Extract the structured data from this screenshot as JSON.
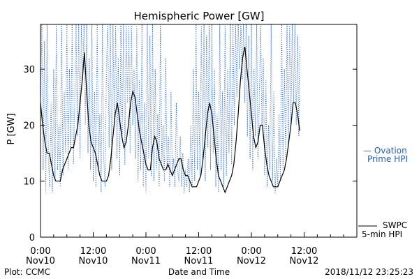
{
  "chart_data": {
    "type": "line",
    "title": "Hemispheric Power [GW]",
    "xlabel": "Date and Time",
    "ylabel": "P [GW]",
    "ylim": [
      0,
      38
    ],
    "y_ticks": [
      0,
      10,
      20,
      30
    ],
    "x_ticks": [
      {
        "t": 0,
        "time": "0:00",
        "day": "Nov10"
      },
      {
        "t": 12,
        "time": "12:00",
        "day": "Nov10"
      },
      {
        "t": 24,
        "time": "0:00",
        "day": "Nov11"
      },
      {
        "t": 36,
        "time": "12:00",
        "day": "Nov11"
      },
      {
        "t": 48,
        "time": "0:00",
        "day": "Nov12"
      },
      {
        "t": 60,
        "time": "12:00",
        "day": "Nov12"
      }
    ],
    "x_range_hours": [
      0,
      72
    ],
    "series": [
      {
        "name": "SWPC 5-min HPI",
        "color": "#000000",
        "style": "solid",
        "points": [
          [
            0,
            24
          ],
          [
            0.5,
            20
          ],
          [
            1,
            17
          ],
          [
            1.5,
            15
          ],
          [
            2,
            15
          ],
          [
            2.5,
            13
          ],
          [
            3,
            11
          ],
          [
            3.5,
            10
          ],
          [
            4,
            10
          ],
          [
            4.5,
            10
          ],
          [
            5,
            12
          ],
          [
            5.5,
            13
          ],
          [
            6,
            14
          ],
          [
            6.5,
            15
          ],
          [
            7,
            16
          ],
          [
            7.5,
            16
          ],
          [
            8,
            18
          ],
          [
            8.5,
            20
          ],
          [
            9,
            24
          ],
          [
            9.5,
            28
          ],
          [
            10,
            33
          ],
          [
            10.5,
            26
          ],
          [
            11,
            20
          ],
          [
            11.5,
            17
          ],
          [
            12,
            16
          ],
          [
            12.5,
            15
          ],
          [
            13,
            13
          ],
          [
            13.5,
            11
          ],
          [
            14,
            10
          ],
          [
            14.5,
            10
          ],
          [
            15,
            10
          ],
          [
            15.5,
            11
          ],
          [
            16,
            14
          ],
          [
            16.5,
            18
          ],
          [
            17,
            22
          ],
          [
            17.5,
            24
          ],
          [
            18,
            21
          ],
          [
            18.5,
            18
          ],
          [
            19,
            16
          ],
          [
            19.5,
            17
          ],
          [
            20,
            20
          ],
          [
            20.5,
            24
          ],
          [
            21,
            26
          ],
          [
            21.5,
            25
          ],
          [
            22,
            22
          ],
          [
            22.5,
            19
          ],
          [
            23,
            17
          ],
          [
            23.5,
            15
          ],
          [
            24,
            13
          ],
          [
            24.5,
            12
          ],
          [
            25,
            12
          ],
          [
            25.5,
            16
          ],
          [
            26,
            18
          ],
          [
            26.5,
            17
          ],
          [
            27,
            14
          ],
          [
            27.5,
            13
          ],
          [
            28,
            12
          ],
          [
            28.5,
            12
          ],
          [
            29,
            13
          ],
          [
            29.5,
            12
          ],
          [
            30,
            11
          ],
          [
            30.5,
            12
          ],
          [
            31,
            13
          ],
          [
            31.5,
            14
          ],
          [
            32,
            14
          ],
          [
            32.5,
            12
          ],
          [
            33,
            11
          ],
          [
            33.5,
            11
          ],
          [
            34,
            10
          ],
          [
            34.5,
            9
          ],
          [
            35,
            9
          ],
          [
            35.5,
            9
          ],
          [
            36,
            10
          ],
          [
            36.5,
            11
          ],
          [
            37,
            14
          ],
          [
            37.5,
            18
          ],
          [
            38,
            22
          ],
          [
            38.5,
            24
          ],
          [
            39,
            22
          ],
          [
            39.5,
            18
          ],
          [
            40,
            14
          ],
          [
            40.5,
            11
          ],
          [
            41,
            10
          ],
          [
            41.5,
            9
          ],
          [
            42,
            8
          ],
          [
            42.5,
            9
          ],
          [
            43,
            10
          ],
          [
            43.5,
            11
          ],
          [
            44,
            13
          ],
          [
            44.5,
            17
          ],
          [
            45,
            22
          ],
          [
            45.5,
            28
          ],
          [
            46,
            32
          ],
          [
            46.5,
            34
          ],
          [
            47,
            30
          ],
          [
            47.5,
            26
          ],
          [
            48,
            22
          ],
          [
            48.5,
            18
          ],
          [
            49,
            16
          ],
          [
            49.5,
            17
          ],
          [
            50,
            20
          ],
          [
            50.5,
            20
          ],
          [
            51,
            16
          ],
          [
            51.5,
            13
          ],
          [
            52,
            11
          ],
          [
            52.5,
            10
          ],
          [
            53,
            9
          ],
          [
            53.5,
            9
          ],
          [
            54,
            9
          ],
          [
            54.5,
            10
          ],
          [
            55,
            11
          ],
          [
            55.5,
            12
          ],
          [
            56,
            14
          ],
          [
            56.5,
            17
          ],
          [
            57,
            20
          ],
          [
            57.5,
            24
          ],
          [
            58,
            24
          ],
          [
            58.5,
            22
          ],
          [
            59,
            19
          ]
        ]
      },
      {
        "name": "Ovation Prime HPI",
        "color": "#1f5fbf",
        "style": "dotted",
        "points": [
          [
            0,
            22
          ],
          [
            0.3,
            38
          ],
          [
            0.6,
            12
          ],
          [
            0.9,
            35
          ],
          [
            1.2,
            8
          ],
          [
            1.5,
            38
          ],
          [
            1.8,
            14
          ],
          [
            2.1,
            9
          ],
          [
            2.4,
            24
          ],
          [
            2.7,
            8
          ],
          [
            3,
            30
          ],
          [
            3.3,
            10
          ],
          [
            3.6,
            38
          ],
          [
            3.9,
            12
          ],
          [
            4.2,
            20
          ],
          [
            4.5,
            9
          ],
          [
            4.8,
            38
          ],
          [
            5.1,
            11
          ],
          [
            5.4,
            26
          ],
          [
            5.7,
            15
          ],
          [
            6,
            38
          ],
          [
            6.3,
            12
          ],
          [
            6.6,
            30
          ],
          [
            6.9,
            16
          ],
          [
            7.2,
            38
          ],
          [
            7.5,
            13
          ],
          [
            7.8,
            25
          ],
          [
            8.1,
            38
          ],
          [
            8.4,
            18
          ],
          [
            8.7,
            38
          ],
          [
            9,
            14
          ],
          [
            9.3,
            38
          ],
          [
            9.6,
            28
          ],
          [
            9.9,
            38
          ],
          [
            10.2,
            20
          ],
          [
            10.5,
            38
          ],
          [
            10.8,
            15
          ],
          [
            11.1,
            32
          ],
          [
            11.4,
            12
          ],
          [
            11.7,
            38
          ],
          [
            12,
            10
          ],
          [
            12.3,
            26
          ],
          [
            12.6,
            9
          ],
          [
            12.9,
            38
          ],
          [
            13.2,
            12
          ],
          [
            13.5,
            22
          ],
          [
            13.8,
            8
          ],
          [
            14.1,
            38
          ],
          [
            14.4,
            14
          ],
          [
            14.7,
            9
          ],
          [
            15,
            30
          ],
          [
            15.3,
            38
          ],
          [
            15.6,
            16
          ],
          [
            15.9,
            38
          ],
          [
            16.2,
            12
          ],
          [
            16.5,
            38
          ],
          [
            16.8,
            20
          ],
          [
            17.1,
            38
          ],
          [
            17.4,
            14
          ],
          [
            17.7,
            32
          ],
          [
            18,
            11
          ],
          [
            18.3,
            38
          ],
          [
            18.6,
            17
          ],
          [
            18.9,
            38
          ],
          [
            19.2,
            13
          ],
          [
            19.5,
            38
          ],
          [
            19.8,
            24
          ],
          [
            20.1,
            38
          ],
          [
            20.4,
            15
          ],
          [
            20.7,
            38
          ],
          [
            21,
            20
          ],
          [
            21.3,
            30
          ],
          [
            21.6,
            14
          ],
          [
            21.9,
            38
          ],
          [
            22.2,
            10
          ],
          [
            22.5,
            28
          ],
          [
            22.8,
            12
          ],
          [
            23.1,
            38
          ],
          [
            23.4,
            9
          ],
          [
            23.7,
            24
          ],
          [
            24,
            8
          ],
          [
            24.3,
            38
          ],
          [
            24.6,
            14
          ],
          [
            24.9,
            36
          ],
          [
            25.2,
            11
          ],
          [
            25.5,
            38
          ],
          [
            25.8,
            10
          ],
          [
            26.1,
            30
          ],
          [
            26.4,
            12
          ],
          [
            26.7,
            22
          ],
          [
            27,
            9
          ],
          [
            27.3,
            38
          ],
          [
            27.6,
            13
          ],
          [
            27.9,
            20
          ],
          [
            28.2,
            10
          ],
          [
            28.5,
            32
          ],
          [
            28.8,
            12
          ],
          [
            29.1,
            18
          ],
          [
            29.4,
            9
          ],
          [
            29.7,
            26
          ],
          [
            30,
            11
          ],
          [
            30.3,
            14
          ],
          [
            30.6,
            9
          ],
          [
            30.9,
            24
          ],
          [
            31.2,
            12
          ],
          [
            31.5,
            10
          ],
          [
            31.8,
            18
          ],
          [
            32.1,
            9
          ],
          [
            32.4,
            15
          ],
          [
            32.7,
            8
          ],
          [
            33,
            12
          ],
          [
            33.3,
            9
          ],
          [
            33.6,
            14
          ],
          [
            33.9,
            8
          ],
          [
            34.2,
            20
          ],
          [
            34.5,
            9
          ],
          [
            34.8,
            30
          ],
          [
            35.1,
            10
          ],
          [
            35.4,
            38
          ],
          [
            35.7,
            12
          ],
          [
            36,
            26
          ],
          [
            36.3,
            11
          ],
          [
            36.6,
            38
          ],
          [
            36.9,
            14
          ],
          [
            37.2,
            38
          ],
          [
            37.5,
            10
          ],
          [
            37.8,
            36
          ],
          [
            38.1,
            16
          ],
          [
            38.4,
            38
          ],
          [
            38.7,
            12
          ],
          [
            39,
            38
          ],
          [
            39.3,
            15
          ],
          [
            39.6,
            30
          ],
          [
            39.9,
            9
          ],
          [
            40.2,
            22
          ],
          [
            40.5,
            8
          ],
          [
            40.8,
            38
          ],
          [
            41.1,
            12
          ],
          [
            41.4,
            26
          ],
          [
            41.7,
            9
          ],
          [
            42,
            38
          ],
          [
            42.3,
            11
          ],
          [
            42.6,
            30
          ],
          [
            42.9,
            15
          ],
          [
            43.2,
            38
          ],
          [
            43.5,
            13
          ],
          [
            43.8,
            38
          ],
          [
            44.1,
            20
          ],
          [
            44.4,
            38
          ],
          [
            44.7,
            25
          ],
          [
            45,
            38
          ],
          [
            45.3,
            30
          ],
          [
            45.6,
            38
          ],
          [
            45.9,
            28
          ],
          [
            46.2,
            38
          ],
          [
            46.5,
            24
          ],
          [
            46.8,
            38
          ],
          [
            47.1,
            18
          ],
          [
            47.4,
            36
          ],
          [
            47.7,
            14
          ],
          [
            48,
            38
          ],
          [
            48.3,
            12
          ],
          [
            48.6,
            30
          ],
          [
            48.9,
            18
          ],
          [
            49.2,
            38
          ],
          [
            49.5,
            14
          ],
          [
            49.8,
            24
          ],
          [
            50.1,
            38
          ],
          [
            50.4,
            20
          ],
          [
            50.7,
            32
          ],
          [
            51,
            11
          ],
          [
            51.3,
            28
          ],
          [
            51.6,
            9
          ],
          [
            51.9,
            20
          ],
          [
            52.2,
            12
          ],
          [
            52.5,
            38
          ],
          [
            52.8,
            10
          ],
          [
            53.1,
            26
          ],
          [
            53.4,
            8
          ],
          [
            53.7,
            14
          ],
          [
            54,
            9
          ],
          [
            54.3,
            22
          ],
          [
            54.6,
            10
          ],
          [
            54.9,
            38
          ],
          [
            55.2,
            12
          ],
          [
            55.5,
            30
          ],
          [
            55.8,
            14
          ],
          [
            56.1,
            38
          ],
          [
            56.4,
            16
          ],
          [
            56.7,
            38
          ],
          [
            57,
            20
          ],
          [
            57.3,
            38
          ],
          [
            57.6,
            24
          ],
          [
            57.9,
            38
          ],
          [
            58.2,
            20
          ],
          [
            58.5,
            36
          ],
          [
            58.8,
            18
          ],
          [
            59,
            34
          ]
        ]
      }
    ],
    "legend": [
      {
        "text_1": "— Ovation",
        "text_2": "Prime HPI",
        "color": "#1f5fbf",
        "placement": "right"
      },
      {
        "text_1": "SWPC",
        "text_2": "5-min HPI",
        "color": "#000000",
        "placement": "bottom-right"
      }
    ],
    "footer": {
      "left": "Plot: CCMC",
      "right": "2018/11/12 23:25:23"
    }
  }
}
